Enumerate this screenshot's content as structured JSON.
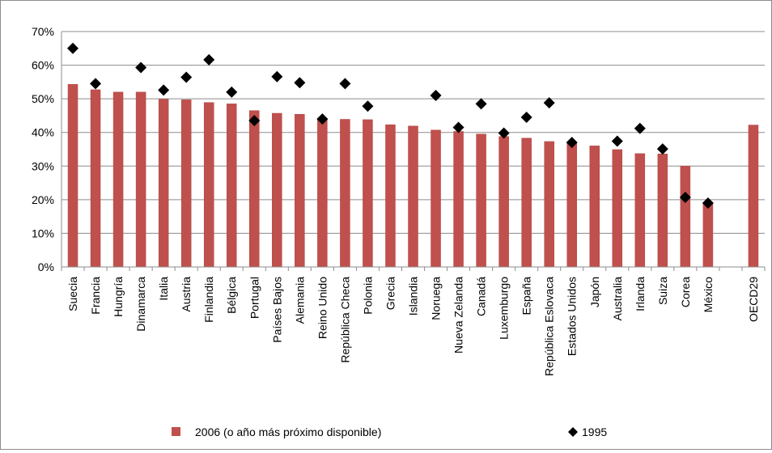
{
  "chart_data": {
    "type": "bar",
    "title": "",
    "xlabel": "",
    "ylabel": "",
    "ylim": [
      0,
      70
    ],
    "y_tick_format": "percent",
    "yticks": [
      "0%",
      "10%",
      "20%",
      "30%",
      "40%",
      "50%",
      "60%",
      "70%"
    ],
    "grid": true,
    "legend_position": "bottom",
    "categories": [
      "Suecia",
      "Francia",
      "Hungría",
      "Dinamarca",
      "Italia",
      "Austria",
      "Finlandia",
      "Bélgica",
      "Portugal",
      "Países Bajos",
      "Alemania",
      "Reino Unido",
      "República Checa",
      "Polonia",
      "Grecia",
      "Islandia",
      "Noruega",
      "Nueva Zelanda",
      "Canadá",
      "Luxemburgo",
      "España",
      "República Eslovaca",
      "Estados Unidos",
      "Japón",
      "Australia",
      "Irlanda",
      "Suiza",
      "Corea",
      "México",
      "",
      "OECD29"
    ],
    "series": [
      {
        "name": "2006 (o año más próximo disponible)",
        "type": "bar",
        "color": "#c0504d",
        "values": [
          54.3,
          52.7,
          52.0,
          52.0,
          49.9,
          49.7,
          48.9,
          48.5,
          46.5,
          45.7,
          45.4,
          43.9,
          43.9,
          43.8,
          42.3,
          41.9,
          40.7,
          40.3,
          39.5,
          38.8,
          38.3,
          37.3,
          36.7,
          36.0,
          34.9,
          33.7,
          33.6,
          30.0,
          19.2,
          null,
          42.2
        ]
      },
      {
        "name": "1995",
        "type": "scatter",
        "marker": "diamond",
        "color": "#000000",
        "values": [
          65.0,
          54.5,
          null,
          59.3,
          52.6,
          56.4,
          61.6,
          52.0,
          43.5,
          56.6,
          54.8,
          44.0,
          54.5,
          47.8,
          null,
          null,
          51.0,
          41.5,
          48.5,
          39.8,
          44.5,
          48.8,
          37.0,
          null,
          37.4,
          41.2,
          35.1,
          20.7,
          19.0,
          null,
          null
        ]
      }
    ]
  }
}
